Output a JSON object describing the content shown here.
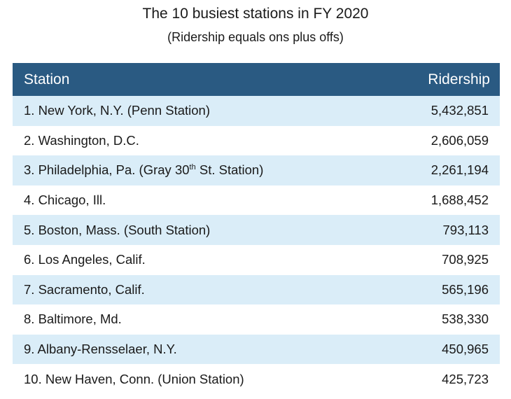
{
  "chart_data": {
    "type": "table",
    "title": "The 10 busiest stations in FY 2020",
    "subtitle": "(Ridership equals ons plus offs)",
    "columns": [
      "Station",
      "Ridership"
    ],
    "rows": [
      {
        "station": "1. New York, N.Y. (Penn Station)",
        "ridership": "5,432,851",
        "value": 5432851
      },
      {
        "station": "2. Washington, D.C.",
        "ridership": "2,606,059",
        "value": 2606059
      },
      {
        "station_prefix": "3. Philadelphia, Pa. (Gray 30",
        "station_sup": "th",
        "station_suffix": " St. Station)",
        "ridership": "2,261,194",
        "value": 2261194
      },
      {
        "station": "4. Chicago, Ill.",
        "ridership": "1,688,452",
        "value": 1688452
      },
      {
        "station": "5. Boston, Mass. (South Station)",
        "ridership": "793,113",
        "value": 793113
      },
      {
        "station": "6. Los Angeles, Calif.",
        "ridership": "708,925",
        "value": 708925
      },
      {
        "station": "7. Sacramento, Calif.",
        "ridership": "565,196",
        "value": 565196
      },
      {
        "station": "8. Baltimore, Md.",
        "ridership": "538,330",
        "value": 538330
      },
      {
        "station": "9. Albany-Rensselaer, N.Y.",
        "ridership": "450,965",
        "value": 450965
      },
      {
        "station": "10. New Haven, Conn. (Union Station)",
        "ridership": "425,723",
        "value": 425723
      }
    ]
  },
  "colors": {
    "header_bg": "#2a5a82",
    "header_text": "#ffffff",
    "row_shade": "#daedf8"
  }
}
